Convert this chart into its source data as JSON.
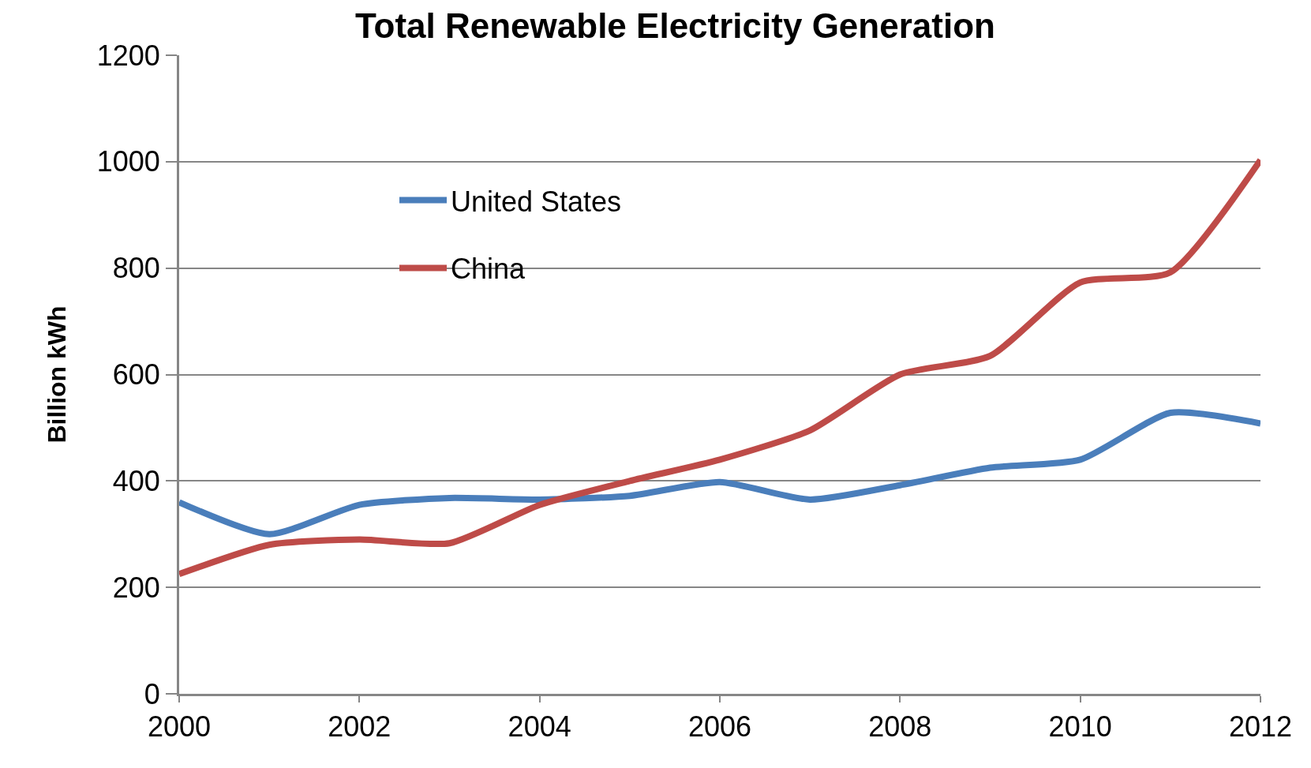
{
  "chart_data": {
    "type": "line",
    "title": "Total Renewable Electricity Generation",
    "ylabel": "Billion kWh",
    "x": [
      2000,
      2001,
      2002,
      2003,
      2004,
      2005,
      2006,
      2007,
      2008,
      2009,
      2010,
      2011,
      2012
    ],
    "series": [
      {
        "name": "United States",
        "color": "#4a7ebb",
        "values": [
          360,
          300,
          355,
          368,
          365,
          372,
          398,
          365,
          392,
          425,
          440,
          528,
          508
        ]
      },
      {
        "name": "China",
        "color": "#be4b48",
        "values": [
          225,
          280,
          290,
          283,
          355,
          400,
          440,
          495,
          600,
          635,
          773,
          792,
          1003
        ]
      }
    ],
    "xlim": [
      2000,
      2012
    ],
    "xticks": [
      2000,
      2002,
      2004,
      2006,
      2008,
      2010,
      2012
    ],
    "ylim": [
      0,
      1200
    ],
    "yticks": [
      0,
      200,
      400,
      600,
      800,
      1000,
      1200
    ],
    "grid": "y",
    "legend": "top left",
    "line_style": "solid"
  }
}
